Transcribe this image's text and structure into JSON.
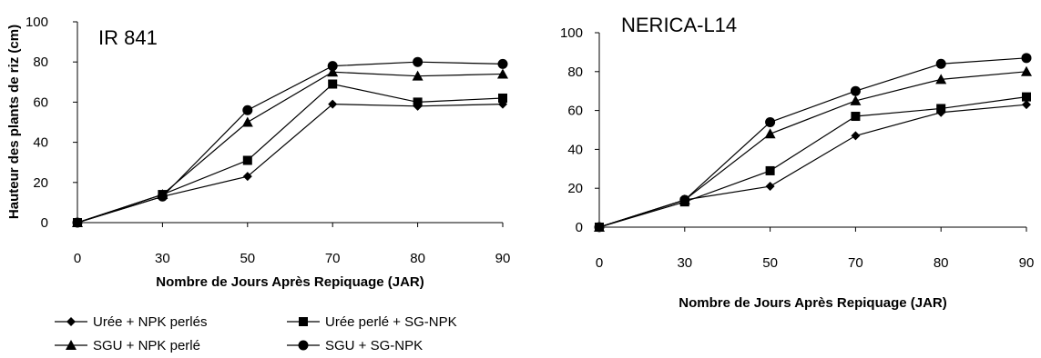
{
  "chart_data": [
    {
      "type": "line",
      "title": "IR 841",
      "xlabel": "Nombre de Jours Après Repiquage (JAR)",
      "ylabel": "Hauteur des plants de riz (cm)",
      "categories": [
        "0",
        "30",
        "50",
        "70",
        "80",
        "90"
      ],
      "ylim": [
        0,
        100
      ],
      "yticks": [
        "0",
        "20",
        "40",
        "60",
        "80",
        "100"
      ],
      "grid": false,
      "series": [
        {
          "name": "Urée + NPK perlés",
          "marker": "diamond",
          "values": [
            0,
            13,
            23,
            59,
            58,
            59
          ]
        },
        {
          "name": "Urée perlé + SG-NPK",
          "marker": "square",
          "values": [
            0,
            14,
            31,
            69,
            60,
            62
          ]
        },
        {
          "name": "SGU + NPK perlé",
          "marker": "triangle",
          "values": [
            0,
            14,
            50,
            75,
            73,
            74
          ]
        },
        {
          "name": "SGU + SG-NPK",
          "marker": "circle",
          "values": [
            0,
            13,
            56,
            78,
            80,
            79
          ]
        }
      ]
    },
    {
      "type": "line",
      "title": "NERICA-L14",
      "xlabel": "Nombre de Jours Après Repiquage (JAR)",
      "ylabel": "",
      "categories": [
        "0",
        "30",
        "50",
        "70",
        "80",
        "90"
      ],
      "ylim": [
        0,
        100
      ],
      "yticks": [
        "0",
        "20",
        "40",
        "60",
        "80",
        "100"
      ],
      "grid": false,
      "series": [
        {
          "name": "Urée + NPK perlés",
          "marker": "diamond",
          "values": [
            0,
            14,
            21,
            47,
            59,
            63
          ]
        },
        {
          "name": "Urée perlé + SG-NPK",
          "marker": "square",
          "values": [
            0,
            13,
            29,
            57,
            61,
            67
          ]
        },
        {
          "name": "SGU + NPK perlé",
          "marker": "triangle",
          "values": [
            0,
            14,
            48,
            65,
            76,
            80
          ]
        },
        {
          "name": "SGU + SG-NPK",
          "marker": "circle",
          "values": [
            0,
            14,
            54,
            70,
            84,
            87
          ]
        }
      ]
    }
  ],
  "legend": {
    "position": "bottom-left",
    "items": [
      {
        "label": "Urée + NPK perlés",
        "marker": "diamond"
      },
      {
        "label": "Urée perlé + SG-NPK",
        "marker": "square"
      },
      {
        "label": "SGU + NPK perlé",
        "marker": "triangle"
      },
      {
        "label": "SGU + SG-NPK",
        "marker": "circle"
      }
    ]
  },
  "colors": {
    "line": "#000000",
    "axis": "#000000",
    "background": "#ffffff"
  }
}
